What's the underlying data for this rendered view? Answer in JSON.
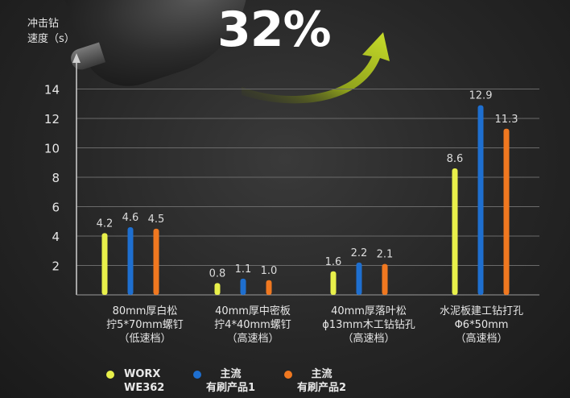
{
  "headline": "32%",
  "chart_data": {
    "type": "bar",
    "ylabel_lines": [
      "冲击钻",
      "速度（s）"
    ],
    "ylim": [
      0,
      15
    ],
    "yticks": [
      2,
      4,
      6,
      8,
      10,
      12,
      14
    ],
    "grid": true,
    "categories": [
      [
        "80mm厚白松",
        "拧5*70mm螺钉",
        "（低速档）"
      ],
      [
        "40mm厚中密板",
        "拧4*40mm螺钉",
        "（高速档）"
      ],
      [
        "40mm厚落叶松",
        "ɸ13mm木工钻钻孔",
        "（高速档）"
      ],
      [
        "水泥板建工钻打孔",
        "Φ6*50mm",
        "（高速档）"
      ]
    ],
    "series": [
      {
        "name": "WORX WE362",
        "color": "#e8f04a",
        "values": [
          4.2,
          0.8,
          1.6,
          8.6
        ],
        "labels": [
          "4.2",
          "0.8",
          "1.6",
          "8.6"
        ]
      },
      {
        "name": "主流 有刷产品1",
        "color": "#1e6fd0",
        "values": [
          4.6,
          1.1,
          2.2,
          12.9
        ],
        "labels": [
          "4.6",
          "1.1",
          "2.2",
          "12.9"
        ]
      },
      {
        "name": "主流 有刷产品2",
        "color": "#f07820",
        "values": [
          4.5,
          1.0,
          2.1,
          11.3
        ],
        "labels": [
          "4.5",
          "1.0",
          "2.1",
          "11.3"
        ]
      }
    ]
  },
  "legend": [
    {
      "lines": [
        "WORX",
        "WE362"
      ],
      "color": "#e8f04a"
    },
    {
      "lines": [
        "主流",
        "有刷产品1"
      ],
      "color": "#1e6fd0"
    },
    {
      "lines": [
        "主流",
        "有刷产品2"
      ],
      "color": "#f07820"
    }
  ]
}
